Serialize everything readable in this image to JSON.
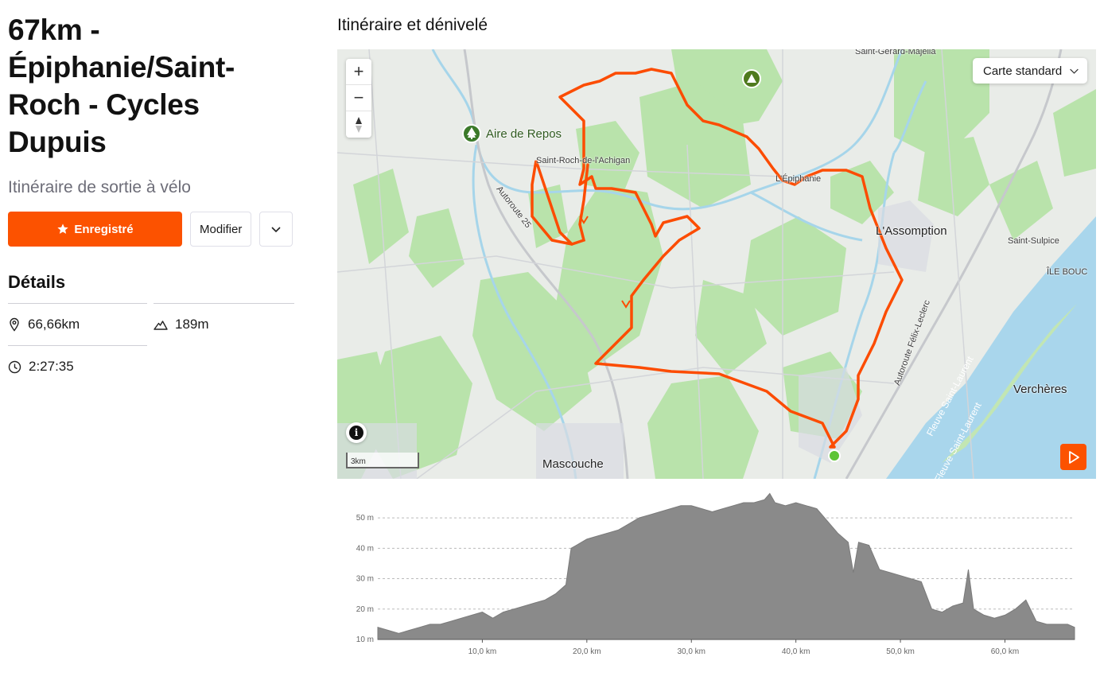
{
  "route": {
    "title": "67km - Épiphanie/Saint-Roch - Cycles Dupuis",
    "subtitle": "Itinéraire de sortie à vélo"
  },
  "actions": {
    "saved_label": "Enregistré",
    "edit_label": "Modifier"
  },
  "details": {
    "heading": "Détails",
    "distance": "66,66km",
    "elevation": "189m",
    "time": "2:27:35"
  },
  "map": {
    "section_title": "Itinéraire et dénivelé",
    "style_select": "Carte standard",
    "zoom_in": "+",
    "zoom_out": "−",
    "scale_label": "3km",
    "places": {
      "saint_gerard": "Saint-Gérard-Majella",
      "aire_repos": "Aire de Repos",
      "saint_roch": "Saint-Roch-de-l'Achigan",
      "epiphanie": "L'Épiphanie",
      "assomption": "L'Assomption",
      "saint_sulpice": "Saint-Sulpice",
      "ile_bouc": "ÎLE BOUC",
      "autoroute25": "Autoroute 25",
      "autoroute_felix": "Autoroute Félix-Leclerc",
      "fleuve1": "Fleuve Saint-Laurent",
      "fleuve2": "Fleuve Saint-Laurent",
      "vercheres": "Verchères",
      "mascouche": "Mascouche"
    },
    "colors": {
      "route": "#fc4c02",
      "water": "#a6d5ea",
      "forest": "#b6e2a8",
      "accent": "#fc5200"
    }
  },
  "chart_data": {
    "type": "area",
    "xlabel": "",
    "ylabel": "",
    "x_ticks": [
      "10,0 km",
      "20,0 km",
      "30,0 km",
      "40,0 km",
      "50,0 km",
      "60,0 km"
    ],
    "y_ticks": [
      "10 m",
      "20 m",
      "30 m",
      "40 m",
      "50 m"
    ],
    "xlim": [
      0,
      66.66
    ],
    "ylim": [
      10,
      55
    ],
    "grid": true,
    "series": [
      {
        "x": [
          0,
          1,
          2,
          3,
          4,
          5,
          6,
          7,
          8,
          9,
          10,
          11,
          12,
          13,
          14,
          15,
          16,
          17,
          18,
          18.5,
          19,
          20,
          21,
          22,
          23,
          24,
          25,
          26,
          27,
          28,
          29,
          30,
          31,
          32,
          33,
          34,
          35,
          36,
          37,
          37.5,
          38,
          39,
          40,
          41,
          42,
          43,
          44,
          45,
          45.5,
          46,
          47,
          48,
          49,
          50,
          51,
          52,
          53,
          54,
          55,
          56,
          56.5,
          57,
          58,
          59,
          60,
          61,
          62,
          63,
          64,
          65,
          66,
          66.66
        ],
        "y": [
          14,
          13,
          12,
          13,
          14,
          15,
          15,
          16,
          17,
          18,
          19,
          17,
          19,
          20,
          21,
          22,
          23,
          25,
          28,
          40,
          41,
          43,
          44,
          45,
          46,
          48,
          50,
          51,
          52,
          53,
          54,
          54,
          53,
          52,
          53,
          54,
          55,
          55,
          56,
          58,
          55,
          54,
          55,
          54,
          53,
          49,
          45,
          42,
          32,
          42,
          41,
          33,
          32,
          31,
          30,
          29,
          20,
          19,
          21,
          22,
          33,
          20,
          18,
          17,
          18,
          20,
          23,
          16,
          15,
          15,
          15,
          14
        ]
      }
    ]
  }
}
